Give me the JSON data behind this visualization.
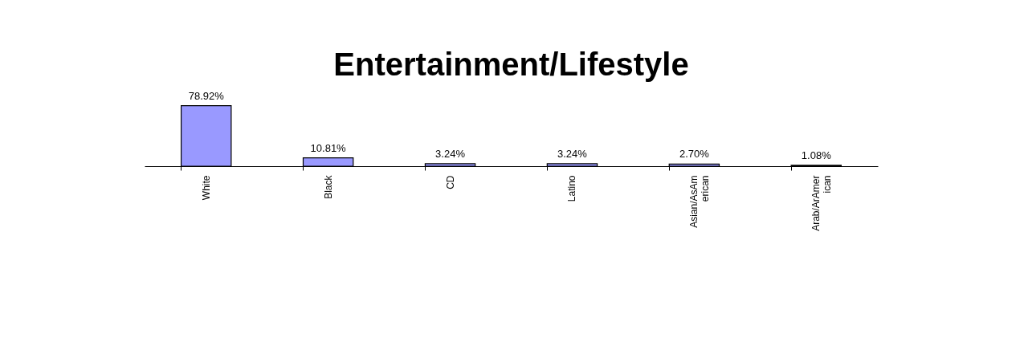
{
  "chart_data": {
    "type": "bar",
    "title": "Entertainment/Lifestyle",
    "categories": [
      "White",
      "Black",
      "CD",
      "Latino",
      "Asian/AsAmerican",
      "Arab/ArAmerican"
    ],
    "values": [
      78.92,
      10.81,
      3.24,
      3.24,
      2.7,
      1.08
    ],
    "value_labels": [
      "78.92%",
      "10.81%",
      "3.24%",
      "3.24%",
      "2.70%",
      "1.08%"
    ],
    "color": "#9999ff"
  }
}
